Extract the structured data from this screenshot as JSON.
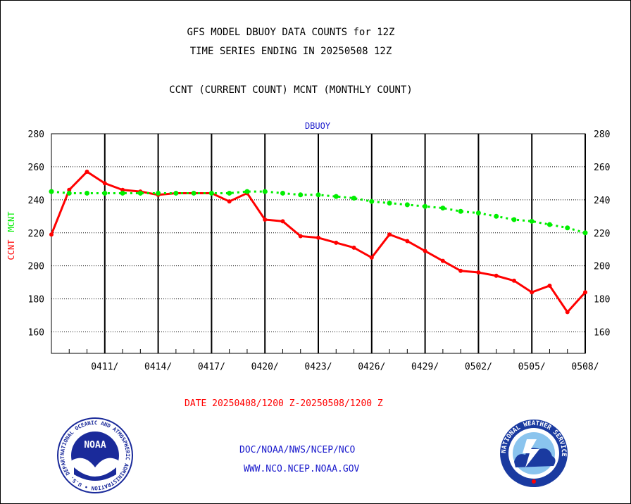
{
  "header": {
    "title_line1": "GFS MODEL DBUOY DATA COUNTS for 12Z",
    "title_line2": "TIME SERIES ENDING IN 20250508 12Z",
    "title_line3": "CCNT (CURRENT COUNT) MCNT (MONTHLY COUNT)"
  },
  "footer": {
    "date_range": "DATE 20250408/1200 Z-20250508/1200 Z",
    "org_line": "DOC/NOAA/NWS/NCEP/NCO",
    "url_line": "WWW.NCO.NCEP.NOAA.GOV"
  },
  "logos": {
    "noaa": "NOAA",
    "noaa_ring": "NATIONAL OCEANIC AND ATMOSPHERIC ADMINISTRATION • U.S. DEPARTMENT OF COMMERCE •",
    "nws_ring": "NATIONAL WEATHER SERVICE"
  },
  "colors": {
    "ccnt": "#ff0000",
    "mcnt": "#00ee00",
    "panel_title": "#1a1acc",
    "footer_text": "#1a1acc"
  },
  "chart_data": {
    "type": "line",
    "title": "DBUOY",
    "ylabel_left_parts": [
      "CCNT",
      "MCNT"
    ],
    "ylim": [
      147,
      280
    ],
    "yticks": [
      160,
      180,
      200,
      220,
      240,
      260,
      280
    ],
    "x_start": "20250408",
    "x_end": "20250508",
    "x_ticks": [
      "0411/",
      "0414/",
      "0417/",
      "0420/",
      "0423/",
      "0426/",
      "0429/",
      "0502/",
      "0505/",
      "0508/"
    ],
    "grid": true,
    "series": [
      {
        "name": "CCNT",
        "color": "#ff0000",
        "values": [
          219,
          246,
          257,
          250,
          246,
          245,
          243,
          244,
          244,
          244,
          239,
          244,
          228,
          227,
          218,
          217,
          214,
          211,
          205,
          219,
          215,
          209,
          203,
          197,
          196,
          194,
          191,
          184,
          188,
          172,
          184
        ]
      },
      {
        "name": "MCNT",
        "color": "#00ee00",
        "values": [
          245,
          244,
          244,
          244,
          244,
          244,
          244,
          244,
          244,
          244,
          244,
          245,
          245,
          244,
          243,
          243,
          242,
          241,
          239,
          238,
          237,
          236,
          235,
          233,
          232,
          230,
          228,
          227,
          225,
          223,
          220
        ]
      }
    ]
  }
}
